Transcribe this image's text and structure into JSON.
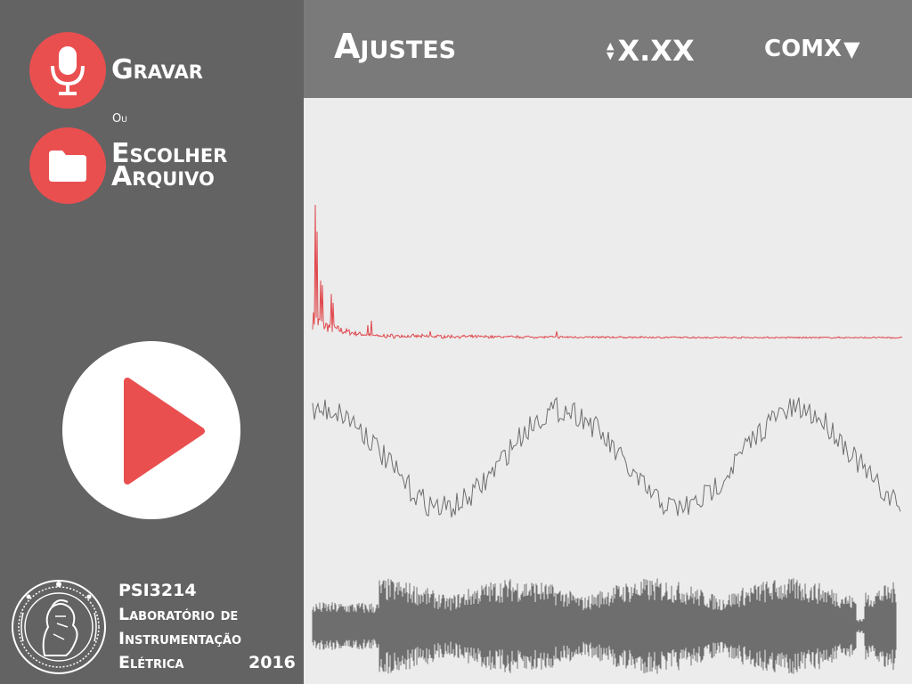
{
  "sidebar": {
    "record_label": "Gravar",
    "or_label": "Ou",
    "choose_line1": "Escolher",
    "choose_line2": "Arquivo",
    "course_code": "PSI3214",
    "course_line1": "Laboratório de",
    "course_line2": "Instrumentação",
    "course_line3": "Elétrica",
    "year": "2016"
  },
  "topbar": {
    "settings_label": "Ajustes",
    "value_display": "X.XX",
    "port_label": "COMX",
    "port_arrow": "▼"
  },
  "icons": {
    "record": "microphone-icon",
    "file": "folder-icon",
    "play": "play-icon",
    "logo": "university-seal-logo"
  },
  "colors": {
    "accent": "#ea4f50",
    "sidebar_bg": "#636363",
    "topbar_bg": "#7a7a7a",
    "plot_bg": "#ececec",
    "spectrum_line": "#e0474c",
    "signal_line": "#6e6e6e"
  }
}
